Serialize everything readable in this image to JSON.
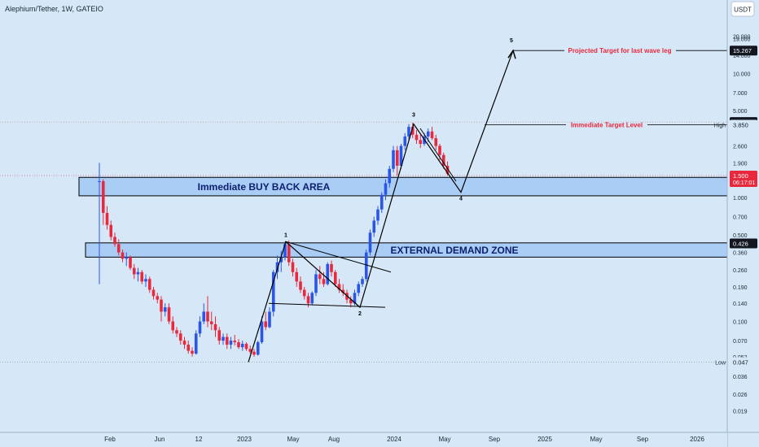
{
  "header": {
    "title": "Alephium/Tether, 1W, GATEIO",
    "currency": "USDT"
  },
  "colors": {
    "up": "#2a56e8",
    "down": "#e8283c",
    "zone": "#a9cdf5",
    "line": "#000000",
    "accent": "#e8283c",
    "bg": "#d6e8f7"
  },
  "chart_data": {
    "type": "candlestick",
    "title": "Alephium/Tether, 1W, GATEIO",
    "y_scale": "log",
    "ylim": [
      0.016,
      28
    ],
    "y_ticks": [
      "20.000",
      "19.000",
      "14.000",
      "10.000",
      "7.000",
      "5.000",
      "2.600",
      "1.900",
      "1.000",
      "0.700",
      "0.500",
      "0.360",
      "0.260",
      "0.190",
      "0.140",
      "0.100",
      "0.070",
      "0.052",
      "0.036",
      "0.026",
      "0.019"
    ],
    "x_ticks": [
      "Feb",
      "Jun",
      "12",
      "2023",
      "May",
      "Aug",
      "2024",
      "May",
      "Sep",
      "2025",
      "May",
      "Sep",
      "2026"
    ],
    "ohlc": [
      [
        1.35,
        1.9,
        0.2,
        1.35
      ],
      [
        1.35,
        1.4,
        0.6,
        0.75
      ],
      [
        0.75,
        0.85,
        0.55,
        0.6
      ],
      [
        0.6,
        0.65,
        0.45,
        0.48
      ],
      [
        0.48,
        0.52,
        0.4,
        0.42
      ],
      [
        0.42,
        0.46,
        0.34,
        0.36
      ],
      [
        0.36,
        0.38,
        0.3,
        0.32
      ],
      [
        0.32,
        0.36,
        0.28,
        0.33
      ],
      [
        0.33,
        0.34,
        0.26,
        0.27
      ],
      [
        0.27,
        0.29,
        0.22,
        0.24
      ],
      [
        0.24,
        0.27,
        0.21,
        0.25
      ],
      [
        0.25,
        0.26,
        0.2,
        0.21
      ],
      [
        0.21,
        0.24,
        0.19,
        0.22
      ],
      [
        0.22,
        0.23,
        0.17,
        0.18
      ],
      [
        0.18,
        0.19,
        0.15,
        0.16
      ],
      [
        0.16,
        0.17,
        0.14,
        0.15
      ],
      [
        0.15,
        0.16,
        0.1,
        0.12
      ],
      [
        0.12,
        0.14,
        0.11,
        0.13
      ],
      [
        0.13,
        0.14,
        0.095,
        0.1
      ],
      [
        0.1,
        0.11,
        0.08,
        0.085
      ],
      [
        0.085,
        0.09,
        0.075,
        0.08
      ],
      [
        0.08,
        0.085,
        0.065,
        0.07
      ],
      [
        0.07,
        0.075,
        0.06,
        0.065
      ],
      [
        0.065,
        0.07,
        0.055,
        0.058
      ],
      [
        0.058,
        0.062,
        0.052,
        0.055
      ],
      [
        0.055,
        0.085,
        0.054,
        0.08
      ],
      [
        0.08,
        0.11,
        0.075,
        0.1
      ],
      [
        0.1,
        0.14,
        0.095,
        0.12
      ],
      [
        0.12,
        0.16,
        0.09,
        0.1
      ],
      [
        0.1,
        0.12,
        0.085,
        0.095
      ],
      [
        0.095,
        0.11,
        0.075,
        0.085
      ],
      [
        0.085,
        0.09,
        0.065,
        0.07
      ],
      [
        0.07,
        0.08,
        0.065,
        0.075
      ],
      [
        0.075,
        0.08,
        0.06,
        0.065
      ],
      [
        0.065,
        0.075,
        0.06,
        0.07
      ],
      [
        0.07,
        0.078,
        0.064,
        0.068
      ],
      [
        0.068,
        0.072,
        0.06,
        0.062
      ],
      [
        0.062,
        0.07,
        0.058,
        0.066
      ],
      [
        0.066,
        0.068,
        0.058,
        0.06
      ],
      [
        0.06,
        0.064,
        0.055,
        0.057
      ],
      [
        0.057,
        0.06,
        0.052,
        0.054
      ],
      [
        0.054,
        0.07,
        0.053,
        0.068
      ],
      [
        0.068,
        0.11,
        0.066,
        0.1
      ],
      [
        0.1,
        0.12,
        0.085,
        0.09
      ],
      [
        0.09,
        0.13,
        0.088,
        0.12
      ],
      [
        0.12,
        0.26,
        0.11,
        0.25
      ],
      [
        0.25,
        0.34,
        0.22,
        0.3
      ],
      [
        0.3,
        0.37,
        0.25,
        0.33
      ],
      [
        0.33,
        0.44,
        0.31,
        0.42
      ],
      [
        0.42,
        0.45,
        0.28,
        0.3
      ],
      [
        0.3,
        0.32,
        0.23,
        0.25
      ],
      [
        0.25,
        0.27,
        0.19,
        0.21
      ],
      [
        0.21,
        0.23,
        0.17,
        0.18
      ],
      [
        0.18,
        0.19,
        0.15,
        0.16
      ],
      [
        0.16,
        0.17,
        0.13,
        0.14
      ],
      [
        0.14,
        0.175,
        0.135,
        0.17
      ],
      [
        0.17,
        0.26,
        0.16,
        0.24
      ],
      [
        0.24,
        0.28,
        0.2,
        0.22
      ],
      [
        0.22,
        0.25,
        0.19,
        0.2
      ],
      [
        0.2,
        0.3,
        0.195,
        0.29
      ],
      [
        0.29,
        0.31,
        0.23,
        0.25
      ],
      [
        0.25,
        0.26,
        0.19,
        0.2
      ],
      [
        0.2,
        0.22,
        0.17,
        0.18
      ],
      [
        0.18,
        0.2,
        0.16,
        0.17
      ],
      [
        0.17,
        0.18,
        0.14,
        0.15
      ],
      [
        0.15,
        0.16,
        0.13,
        0.14
      ],
      [
        0.14,
        0.18,
        0.135,
        0.17
      ],
      [
        0.17,
        0.21,
        0.16,
        0.2
      ],
      [
        0.2,
        0.23,
        0.19,
        0.22
      ],
      [
        0.22,
        0.38,
        0.21,
        0.36
      ],
      [
        0.36,
        0.55,
        0.34,
        0.52
      ],
      [
        0.52,
        0.7,
        0.48,
        0.65
      ],
      [
        0.65,
        0.85,
        0.6,
        0.8
      ],
      [
        0.8,
        1.1,
        0.75,
        1.05
      ],
      [
        1.05,
        1.4,
        0.95,
        1.3
      ],
      [
        1.3,
        1.8,
        1.2,
        1.7
      ],
      [
        1.7,
        2.6,
        1.6,
        2.4
      ],
      [
        2.4,
        2.6,
        1.5,
        1.8
      ],
      [
        1.8,
        2.7,
        1.7,
        2.6
      ],
      [
        2.6,
        3.3,
        2.4,
        3.1
      ],
      [
        3.1,
        3.9,
        2.9,
        3.7
      ],
      [
        3.7,
        4.0,
        3.0,
        3.2
      ],
      [
        3.2,
        3.5,
        2.7,
        2.9
      ],
      [
        2.9,
        3.2,
        2.5,
        2.7
      ],
      [
        2.7,
        3.3,
        2.6,
        3.1
      ],
      [
        3.1,
        3.6,
        2.8,
        3.4
      ],
      [
        3.4,
        3.7,
        2.9,
        3.0
      ],
      [
        3.0,
        3.2,
        2.4,
        2.6
      ],
      [
        2.6,
        2.7,
        2.0,
        2.2
      ],
      [
        2.2,
        2.3,
        1.7,
        1.8
      ],
      [
        1.8,
        1.95,
        1.5,
        1.55
      ]
    ],
    "zones": [
      {
        "label": "Immediate BUY BACK AREA",
        "from": 1.03,
        "to": 1.45
      },
      {
        "label": "EXTERNAL DEMAND ZONE",
        "from": 0.33,
        "to": 0.43
      }
    ],
    "wave_points": [
      {
        "label": "",
        "price": 0.047
      },
      {
        "label": "1",
        "price": 0.44
      },
      {
        "label": "2",
        "price": 0.13
      },
      {
        "label": "3",
        "price": 3.9
      },
      {
        "label": "4",
        "price": 1.1
      },
      {
        "label": "5",
        "price": 15.267
      }
    ],
    "price_levels": [
      {
        "label": "Projected Target for last wave leg",
        "price": 15.267,
        "tag": "15.267"
      },
      {
        "label": "Immediate Target Level",
        "price": 3.85,
        "tag": "3.850",
        "side": "High"
      }
    ],
    "price_tags": [
      {
        "text": "3.897",
        "price": 4.05
      },
      {
        "text": "1.500",
        "sub": "06:17:01",
        "price": 1.5
      },
      {
        "text": "0.426",
        "price": 0.426
      },
      {
        "text": "0.047",
        "side": "Low",
        "price": 0.047
      }
    ]
  }
}
